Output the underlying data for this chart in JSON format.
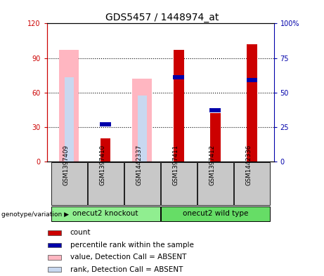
{
  "title": "GDS5457 / 1448974_at",
  "samples": [
    "GSM1397409",
    "GSM1397410",
    "GSM1442337",
    "GSM1397411",
    "GSM1397412",
    "GSM1442336"
  ],
  "groups": [
    {
      "label": "onecut2 knockout",
      "color": "#90EE90",
      "indices": [
        0,
        1,
        2
      ]
    },
    {
      "label": "onecut2 wild type",
      "color": "#66DD66",
      "indices": [
        3,
        4,
        5
      ]
    }
  ],
  "count_values": [
    0,
    20,
    0,
    97,
    42,
    102
  ],
  "rank_values": [
    0,
    27,
    0,
    61,
    37,
    59
  ],
  "absent_value_bars": [
    97,
    0,
    72,
    0,
    0,
    0
  ],
  "absent_rank_bars": [
    61,
    0,
    48,
    0,
    0,
    0
  ],
  "absent_flags": [
    true,
    false,
    true,
    false,
    false,
    false
  ],
  "ylim_left": [
    0,
    120
  ],
  "ylim_right": [
    0,
    100
  ],
  "yticks_left": [
    0,
    30,
    60,
    90,
    120
  ],
  "ytick_labels_left": [
    "0",
    "30",
    "60",
    "90",
    "120"
  ],
  "yticks_right": [
    0,
    25,
    50,
    75,
    100
  ],
  "ytick_labels_right": [
    "0",
    "25",
    "50",
    "75",
    "100%"
  ],
  "count_color": "#CC0000",
  "rank_color": "#0000AA",
  "absent_value_color": "#FFB6C1",
  "absent_rank_color": "#C8D8F0",
  "left_tick_color": "#CC0000",
  "right_tick_color": "#0000AA",
  "sample_box_color": "#C8C8C8",
  "legend_items": [
    {
      "color": "#CC0000",
      "label": "count"
    },
    {
      "color": "#0000AA",
      "label": "percentile rank within the sample"
    },
    {
      "color": "#FFB6C1",
      "label": "value, Detection Call = ABSENT"
    },
    {
      "color": "#C8D8F0",
      "label": "rank, Detection Call = ABSENT"
    }
  ],
  "font_size_title": 10,
  "font_size_tick": 7,
  "font_size_legend": 7.5,
  "group_label": "genotype/variation"
}
